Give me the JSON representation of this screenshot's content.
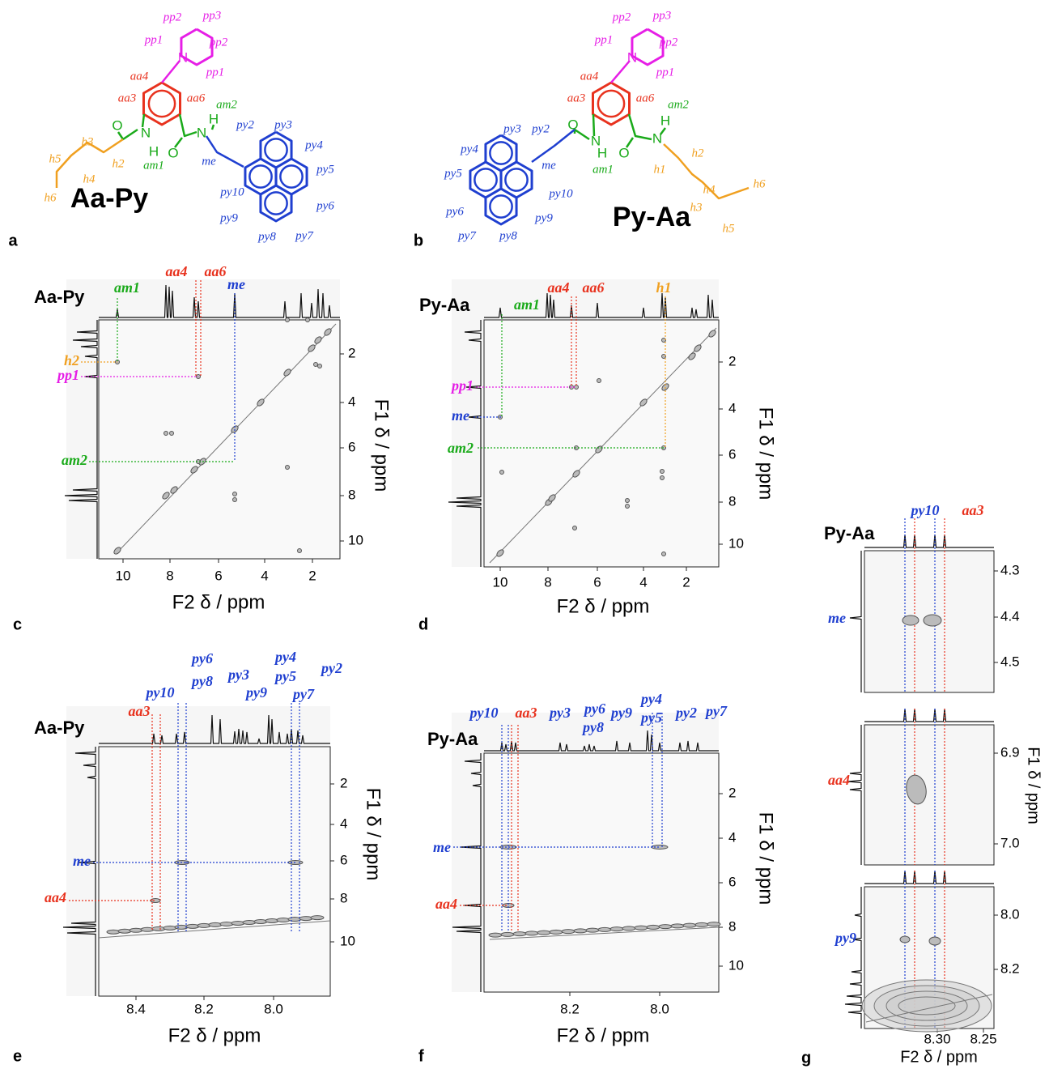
{
  "panels": {
    "a": {
      "letter": "a",
      "title": "Aa-Py",
      "labels": [
        "pp2",
        "pp3",
        "pp1",
        "pp2",
        "pp1",
        "N",
        "aa4",
        "aa3",
        "aa6",
        "am2",
        "H",
        "N",
        "O",
        "N",
        "H",
        "am1",
        "O",
        "me",
        "py2",
        "py3",
        "py4",
        "py5",
        "py6",
        "py7",
        "py8",
        "py9",
        "py10",
        "h3",
        "h2",
        "h5",
        "h4",
        "h6"
      ]
    },
    "b": {
      "letter": "b",
      "title": "Py-Aa",
      "labels": [
        "pp2",
        "pp3",
        "pp1",
        "pp2",
        "pp1",
        "N",
        "aa4",
        "aa3",
        "aa6",
        "am2",
        "H",
        "N",
        "O",
        "N",
        "H",
        "am1",
        "O",
        "me",
        "py3",
        "py2",
        "py4",
        "py5",
        "py6",
        "py7",
        "py8",
        "py9",
        "py10",
        "h1",
        "h2",
        "h4",
        "h3",
        "h6",
        "h5"
      ]
    },
    "c": {
      "letter": "c",
      "title": "Aa-Py",
      "top_labels": [
        "am1",
        "aa4",
        "aa6",
        "me"
      ],
      "left_labels": [
        "h2",
        "pp1",
        "am2"
      ],
      "f1_ticks": [
        "2",
        "4",
        "6",
        "8",
        "10"
      ],
      "f2_ticks": [
        "10",
        "8",
        "6",
        "4",
        "2"
      ],
      "f1_title": "F1 δ / ppm",
      "f2_title": "F2 δ / ppm"
    },
    "d": {
      "letter": "d",
      "title": "Py-Aa",
      "top_labels": [
        "am1",
        "aa4",
        "aa6",
        "h1"
      ],
      "left_labels": [
        "pp1",
        "me",
        "am2"
      ],
      "f1_ticks": [
        "2",
        "4",
        "6",
        "8",
        "10"
      ],
      "f2_ticks": [
        "10",
        "8",
        "6",
        "4",
        "2"
      ],
      "f1_title": "F1 δ / ppm",
      "f2_title": "F2 δ / ppm"
    },
    "e": {
      "letter": "e",
      "title": "Aa-Py",
      "top_labels": [
        "aa3",
        "py10",
        "py6",
        "py8",
        "py3",
        "py9",
        "py4",
        "py5",
        "py7",
        "py2"
      ],
      "left_labels": [
        "me",
        "aa4"
      ],
      "f1_ticks": [
        "2",
        "4",
        "6",
        "8",
        "10"
      ],
      "f2_ticks": [
        "8.4",
        "8.2",
        "8.0"
      ],
      "f1_title": "F1 δ / ppm",
      "f2_title": "F2 δ / ppm"
    },
    "f": {
      "letter": "f",
      "title": "Py-Aa",
      "top_labels": [
        "py10",
        "aa3",
        "py3",
        "py6",
        "py8",
        "py9",
        "py4",
        "py5",
        "py2",
        "py7"
      ],
      "left_labels": [
        "me",
        "aa4"
      ],
      "f1_ticks": [
        "2",
        "4",
        "6",
        "8",
        "10"
      ],
      "f2_ticks": [
        "8.2",
        "8.0"
      ],
      "f1_title": "F1 δ / ppm",
      "f2_title": "F2 δ / ppm"
    },
    "g": {
      "letter": "g",
      "title": "Py-Aa",
      "top_labels": [
        "py10",
        "aa3"
      ],
      "left_labels": [
        "me",
        "aa4",
        "py9"
      ],
      "f1_ticks": [
        "4.3",
        "4.4",
        "4.5",
        "6.9",
        "7.0",
        "8.0",
        "8.2"
      ],
      "f2_ticks": [
        "8.30",
        "8.25"
      ],
      "f1_title": "F1 δ / ppm",
      "f2_title": "F2 δ / ppm"
    }
  }
}
